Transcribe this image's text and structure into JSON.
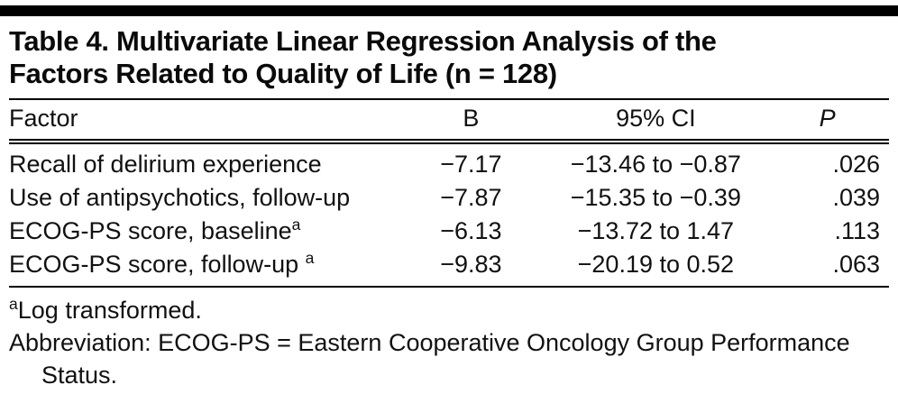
{
  "colors": {
    "rule": "#000000",
    "background": "#ffffff",
    "text": "#111111"
  },
  "title": {
    "line1": "Table 4. Multivariate Linear Regression Analysis of the",
    "line2": "Factors Related to Quality of Life (n = 128)"
  },
  "columns": {
    "factor": "Factor",
    "b": "B",
    "ci": "95% CI",
    "p": "P"
  },
  "rows": [
    {
      "factor": "Recall of delirium experience",
      "sup": "",
      "b": "−7.17",
      "ci": "−13.46 to −0.87",
      "p": ".026"
    },
    {
      "factor": "Use of antipsychotics, follow-up",
      "sup": "",
      "b": "−7.87",
      "ci": "−15.35 to −0.39",
      "p": ".039"
    },
    {
      "factor": "ECOG-PS score, baseline",
      "sup": "a",
      "b": "−6.13",
      "ci": "−13.72 to 1.47",
      "p": ".113"
    },
    {
      "factor": "ECOG-PS score, follow-up ",
      "sup": "a",
      "b": "−9.83",
      "ci": "−20.19 to 0.52",
      "p": ".063"
    }
  ],
  "footnotes": {
    "a_sup": "a",
    "a_text": "Log transformed.",
    "abbreviation": "Abbreviation: ECOG-PS = Eastern Cooperative Oncology Group Performance Status."
  }
}
